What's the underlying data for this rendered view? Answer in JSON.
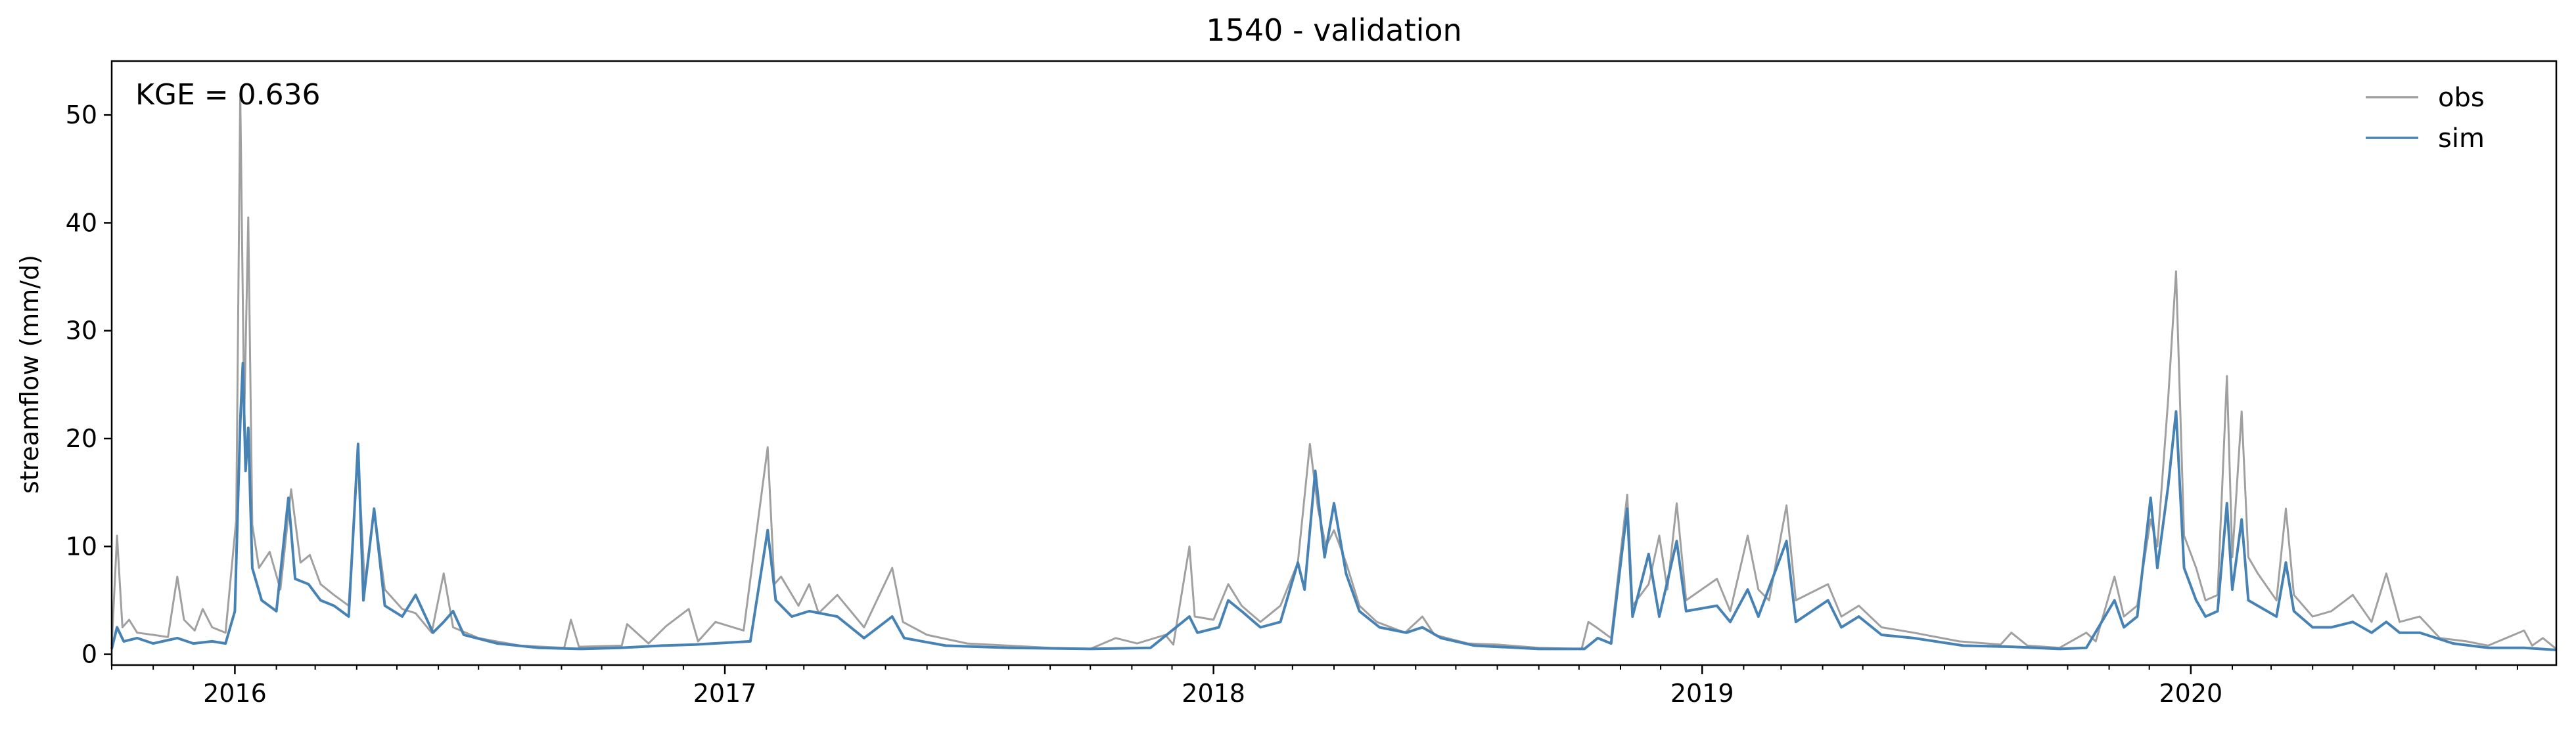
{
  "chart_data": {
    "type": "line",
    "title": "1540 - validation",
    "xlabel": "",
    "ylabel": "streamflow (mm/d)",
    "annotation": "KGE = 0.636",
    "x_range": [
      "2015-10-01",
      "2020-09-30"
    ],
    "ylim": [
      -1,
      55
    ],
    "yticks": [
      0,
      10,
      20,
      30,
      40,
      50
    ],
    "xticks": [
      {
        "date": "2016-01-01",
        "label": "2016"
      },
      {
        "date": "2017-01-01",
        "label": "2017"
      },
      {
        "date": "2018-01-01",
        "label": "2018"
      },
      {
        "date": "2019-01-01",
        "label": "2019"
      },
      {
        "date": "2020-01-01",
        "label": "2020"
      }
    ],
    "grid": false,
    "legend": {
      "position": "top-right",
      "entries": [
        "obs",
        "sim"
      ]
    },
    "series": [
      {
        "name": "obs",
        "color": "#a0a0a0",
        "points": [
          [
            "2015-10-01",
            0.8
          ],
          [
            "2015-10-05",
            11.0
          ],
          [
            "2015-10-09",
            2.5
          ],
          [
            "2015-10-14",
            3.2
          ],
          [
            "2015-10-20",
            2.0
          ],
          [
            "2015-11-01",
            1.8
          ],
          [
            "2015-11-12",
            1.6
          ],
          [
            "2015-11-19",
            7.2
          ],
          [
            "2015-11-24",
            3.2
          ],
          [
            "2015-12-02",
            2.2
          ],
          [
            "2015-12-08",
            4.2
          ],
          [
            "2015-12-15",
            2.5
          ],
          [
            "2015-12-25",
            2.0
          ],
          [
            "2016-01-02",
            12.5
          ],
          [
            "2016-01-05",
            52.0
          ],
          [
            "2016-01-08",
            22.0
          ],
          [
            "2016-01-11",
            40.5
          ],
          [
            "2016-01-14",
            12.0
          ],
          [
            "2016-01-19",
            8.0
          ],
          [
            "2016-01-27",
            9.5
          ],
          [
            "2016-02-04",
            6.0
          ],
          [
            "2016-02-12",
            15.3
          ],
          [
            "2016-02-19",
            8.5
          ],
          [
            "2016-02-26",
            9.2
          ],
          [
            "2016-03-05",
            6.5
          ],
          [
            "2016-03-15",
            5.5
          ],
          [
            "2016-03-26",
            4.5
          ],
          [
            "2016-04-02",
            18.5
          ],
          [
            "2016-04-07",
            6.5
          ],
          [
            "2016-04-14",
            13.5
          ],
          [
            "2016-04-22",
            6.0
          ],
          [
            "2016-05-05",
            4.2
          ],
          [
            "2016-05-15",
            3.8
          ],
          [
            "2016-05-27",
            2.0
          ],
          [
            "2016-06-05",
            7.5
          ],
          [
            "2016-06-12",
            2.5
          ],
          [
            "2016-07-01",
            1.5
          ],
          [
            "2016-08-01",
            0.8
          ],
          [
            "2016-09-03",
            0.6
          ],
          [
            "2016-09-08",
            3.2
          ],
          [
            "2016-09-14",
            0.7
          ],
          [
            "2016-10-16",
            0.8
          ],
          [
            "2016-10-20",
            2.8
          ],
          [
            "2016-11-05",
            1.0
          ],
          [
            "2016-11-18",
            2.6
          ],
          [
            "2016-12-05",
            4.2
          ],
          [
            "2016-12-12",
            1.2
          ],
          [
            "2016-12-25",
            3.0
          ],
          [
            "2017-01-15",
            2.2
          ],
          [
            "2017-02-02",
            19.2
          ],
          [
            "2017-02-07",
            6.5
          ],
          [
            "2017-02-12",
            7.2
          ],
          [
            "2017-02-25",
            4.5
          ],
          [
            "2017-03-05",
            6.5
          ],
          [
            "2017-03-12",
            3.8
          ],
          [
            "2017-03-26",
            5.5
          ],
          [
            "2017-04-15",
            2.5
          ],
          [
            "2017-05-06",
            8.0
          ],
          [
            "2017-05-14",
            3.0
          ],
          [
            "2017-06-01",
            1.8
          ],
          [
            "2017-07-01",
            1.0
          ],
          [
            "2017-08-01",
            0.8
          ],
          [
            "2017-09-01",
            0.6
          ],
          [
            "2017-10-01",
            0.5
          ],
          [
            "2017-10-20",
            1.5
          ],
          [
            "2017-11-05",
            1.0
          ],
          [
            "2017-11-26",
            1.8
          ],
          [
            "2017-12-02",
            0.9
          ],
          [
            "2017-12-14",
            10.0
          ],
          [
            "2017-12-18",
            3.5
          ],
          [
            "2018-01-01",
            3.2
          ],
          [
            "2018-01-12",
            6.5
          ],
          [
            "2018-01-22",
            4.5
          ],
          [
            "2018-02-05",
            3.0
          ],
          [
            "2018-02-20",
            4.5
          ],
          [
            "2018-03-05",
            8.5
          ],
          [
            "2018-03-14",
            19.5
          ],
          [
            "2018-03-20",
            13.5
          ],
          [
            "2018-03-26",
            10.0
          ],
          [
            "2018-04-01",
            11.5
          ],
          [
            "2018-04-10",
            8.5
          ],
          [
            "2018-04-20",
            4.5
          ],
          [
            "2018-05-03",
            3.0
          ],
          [
            "2018-05-24",
            2.0
          ],
          [
            "2018-06-06",
            3.5
          ],
          [
            "2018-06-15",
            1.8
          ],
          [
            "2018-07-10",
            1.0
          ],
          [
            "2018-08-01",
            0.9
          ],
          [
            "2018-09-01",
            0.6
          ],
          [
            "2018-10-03",
            0.5
          ],
          [
            "2018-10-08",
            3.0
          ],
          [
            "2018-10-14",
            2.5
          ],
          [
            "2018-10-25",
            1.5
          ],
          [
            "2018-11-06",
            14.8
          ],
          [
            "2018-11-10",
            4.5
          ],
          [
            "2018-11-22",
            6.5
          ],
          [
            "2018-11-30",
            11.0
          ],
          [
            "2018-12-06",
            6.0
          ],
          [
            "2018-12-13",
            14.0
          ],
          [
            "2018-12-20",
            5.0
          ],
          [
            "2019-01-12",
            7.0
          ],
          [
            "2019-01-22",
            4.0
          ],
          [
            "2019-02-04",
            11.0
          ],
          [
            "2019-02-12",
            6.0
          ],
          [
            "2019-02-20",
            5.0
          ],
          [
            "2019-03-05",
            13.8
          ],
          [
            "2019-03-12",
            5.0
          ],
          [
            "2019-04-05",
            6.5
          ],
          [
            "2019-04-15",
            3.5
          ],
          [
            "2019-04-28",
            4.5
          ],
          [
            "2019-05-15",
            2.5
          ],
          [
            "2019-06-08",
            2.0
          ],
          [
            "2019-07-12",
            1.2
          ],
          [
            "2019-08-12",
            0.9
          ],
          [
            "2019-08-20",
            2.0
          ],
          [
            "2019-09-01",
            0.8
          ],
          [
            "2019-09-25",
            0.6
          ],
          [
            "2019-10-15",
            2.0
          ],
          [
            "2019-10-22",
            1.2
          ],
          [
            "2019-11-05",
            7.2
          ],
          [
            "2019-11-12",
            3.5
          ],
          [
            "2019-11-22",
            4.5
          ],
          [
            "2019-12-02",
            12.5
          ],
          [
            "2019-12-07",
            10.0
          ],
          [
            "2019-12-15",
            23.5
          ],
          [
            "2019-12-21",
            35.5
          ],
          [
            "2019-12-27",
            11.0
          ],
          [
            "2020-01-05",
            8.0
          ],
          [
            "2020-01-12",
            5.0
          ],
          [
            "2020-01-21",
            5.5
          ],
          [
            "2020-01-28",
            25.8
          ],
          [
            "2020-02-01",
            9.0
          ],
          [
            "2020-02-08",
            22.5
          ],
          [
            "2020-02-13",
            9.0
          ],
          [
            "2020-02-20",
            7.5
          ],
          [
            "2020-03-05",
            5.0
          ],
          [
            "2020-03-12",
            13.5
          ],
          [
            "2020-03-18",
            5.5
          ],
          [
            "2020-04-01",
            3.5
          ],
          [
            "2020-04-15",
            4.0
          ],
          [
            "2020-05-01",
            5.5
          ],
          [
            "2020-05-15",
            3.0
          ],
          [
            "2020-05-26",
            7.5
          ],
          [
            "2020-06-05",
            3.0
          ],
          [
            "2020-06-20",
            3.5
          ],
          [
            "2020-07-05",
            1.5
          ],
          [
            "2020-07-25",
            1.2
          ],
          [
            "2020-08-10",
            0.8
          ],
          [
            "2020-09-06",
            2.2
          ],
          [
            "2020-09-12",
            0.8
          ],
          [
            "2020-09-20",
            1.5
          ],
          [
            "2020-09-30",
            0.5
          ]
        ]
      },
      {
        "name": "sim",
        "color": "#4682b4",
        "points": [
          [
            "2015-10-01",
            0.5
          ],
          [
            "2015-10-05",
            2.5
          ],
          [
            "2015-10-10",
            1.2
          ],
          [
            "2015-10-20",
            1.5
          ],
          [
            "2015-11-01",
            1.0
          ],
          [
            "2015-11-19",
            1.5
          ],
          [
            "2015-12-01",
            1.0
          ],
          [
            "2015-12-15",
            1.2
          ],
          [
            "2015-12-25",
            1.0
          ],
          [
            "2016-01-01",
            4.0
          ],
          [
            "2016-01-05",
            21.5
          ],
          [
            "2016-01-07",
            27.0
          ],
          [
            "2016-01-09",
            17.0
          ],
          [
            "2016-01-11",
            21.0
          ],
          [
            "2016-01-14",
            8.0
          ],
          [
            "2016-01-21",
            5.0
          ],
          [
            "2016-02-01",
            4.0
          ],
          [
            "2016-02-10",
            14.5
          ],
          [
            "2016-02-15",
            7.0
          ],
          [
            "2016-02-25",
            6.5
          ],
          [
            "2016-03-05",
            5.0
          ],
          [
            "2016-03-15",
            4.5
          ],
          [
            "2016-03-26",
            3.5
          ],
          [
            "2016-04-02",
            19.5
          ],
          [
            "2016-04-06",
            5.0
          ],
          [
            "2016-04-14",
            13.5
          ],
          [
            "2016-04-22",
            4.5
          ],
          [
            "2016-05-05",
            3.5
          ],
          [
            "2016-05-15",
            5.5
          ],
          [
            "2016-05-28",
            2.0
          ],
          [
            "2016-06-05",
            3.0
          ],
          [
            "2016-06-12",
            4.0
          ],
          [
            "2016-06-20",
            1.8
          ],
          [
            "2016-07-15",
            1.0
          ],
          [
            "2016-08-15",
            0.6
          ],
          [
            "2016-09-15",
            0.5
          ],
          [
            "2016-10-15",
            0.6
          ],
          [
            "2016-11-15",
            0.8
          ],
          [
            "2016-12-10",
            0.9
          ],
          [
            "2017-01-20",
            1.2
          ],
          [
            "2017-02-02",
            11.5
          ],
          [
            "2017-02-08",
            5.0
          ],
          [
            "2017-02-20",
            3.5
          ],
          [
            "2017-03-05",
            4.0
          ],
          [
            "2017-03-26",
            3.5
          ],
          [
            "2017-04-15",
            1.5
          ],
          [
            "2017-05-06",
            3.5
          ],
          [
            "2017-05-15",
            1.5
          ],
          [
            "2017-06-15",
            0.8
          ],
          [
            "2017-08-01",
            0.6
          ],
          [
            "2017-10-01",
            0.5
          ],
          [
            "2017-11-15",
            0.6
          ],
          [
            "2017-12-14",
            3.5
          ],
          [
            "2017-12-20",
            2.0
          ],
          [
            "2018-01-05",
            2.5
          ],
          [
            "2018-01-12",
            5.0
          ],
          [
            "2018-01-22",
            4.0
          ],
          [
            "2018-02-05",
            2.5
          ],
          [
            "2018-02-20",
            3.0
          ],
          [
            "2018-03-05",
            8.5
          ],
          [
            "2018-03-10",
            6.0
          ],
          [
            "2018-03-18",
            17.0
          ],
          [
            "2018-03-25",
            9.0
          ],
          [
            "2018-04-01",
            14.0
          ],
          [
            "2018-04-10",
            7.5
          ],
          [
            "2018-04-20",
            4.0
          ],
          [
            "2018-05-05",
            2.5
          ],
          [
            "2018-05-25",
            2.0
          ],
          [
            "2018-06-06",
            2.5
          ],
          [
            "2018-06-20",
            1.5
          ],
          [
            "2018-07-15",
            0.8
          ],
          [
            "2018-09-01",
            0.5
          ],
          [
            "2018-10-05",
            0.5
          ],
          [
            "2018-10-15",
            1.5
          ],
          [
            "2018-10-25",
            1.0
          ],
          [
            "2018-11-06",
            13.5
          ],
          [
            "2018-11-10",
            3.5
          ],
          [
            "2018-11-22",
            9.3
          ],
          [
            "2018-11-30",
            3.5
          ],
          [
            "2018-12-13",
            10.5
          ],
          [
            "2018-12-20",
            4.0
          ],
          [
            "2019-01-12",
            4.5
          ],
          [
            "2019-01-22",
            3.0
          ],
          [
            "2019-02-04",
            6.0
          ],
          [
            "2019-02-12",
            3.5
          ],
          [
            "2019-03-05",
            10.5
          ],
          [
            "2019-03-12",
            3.0
          ],
          [
            "2019-04-05",
            5.0
          ],
          [
            "2019-04-15",
            2.5
          ],
          [
            "2019-04-28",
            3.5
          ],
          [
            "2019-05-15",
            1.8
          ],
          [
            "2019-06-08",
            1.5
          ],
          [
            "2019-07-15",
            0.8
          ],
          [
            "2019-08-20",
            0.7
          ],
          [
            "2019-09-25",
            0.5
          ],
          [
            "2019-10-15",
            0.6
          ],
          [
            "2019-11-05",
            5.0
          ],
          [
            "2019-11-12",
            2.5
          ],
          [
            "2019-11-22",
            3.5
          ],
          [
            "2019-12-02",
            14.5
          ],
          [
            "2019-12-07",
            8.0
          ],
          [
            "2019-12-15",
            15.5
          ],
          [
            "2019-12-21",
            22.5
          ],
          [
            "2019-12-27",
            8.0
          ],
          [
            "2020-01-05",
            5.0
          ],
          [
            "2020-01-12",
            3.5
          ],
          [
            "2020-01-21",
            4.0
          ],
          [
            "2020-01-28",
            14.0
          ],
          [
            "2020-02-01",
            6.0
          ],
          [
            "2020-02-08",
            12.5
          ],
          [
            "2020-02-13",
            5.0
          ],
          [
            "2020-02-20",
            4.5
          ],
          [
            "2020-03-05",
            3.5
          ],
          [
            "2020-03-12",
            8.5
          ],
          [
            "2020-03-18",
            4.0
          ],
          [
            "2020-04-01",
            2.5
          ],
          [
            "2020-04-15",
            2.5
          ],
          [
            "2020-05-01",
            3.0
          ],
          [
            "2020-05-15",
            2.0
          ],
          [
            "2020-05-26",
            3.0
          ],
          [
            "2020-06-05",
            2.0
          ],
          [
            "2020-06-20",
            2.0
          ],
          [
            "2020-07-15",
            1.0
          ],
          [
            "2020-08-10",
            0.6
          ],
          [
            "2020-09-06",
            0.6
          ],
          [
            "2020-09-30",
            0.4
          ]
        ]
      }
    ]
  }
}
